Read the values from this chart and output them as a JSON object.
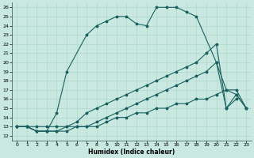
{
  "xlabel": "Humidex (Indice chaleur)",
  "xlim": [
    -0.5,
    23.5
  ],
  "ylim": [
    11.5,
    26.5
  ],
  "xticks": [
    0,
    1,
    2,
    3,
    4,
    5,
    6,
    7,
    8,
    9,
    10,
    11,
    12,
    13,
    14,
    15,
    16,
    17,
    18,
    19,
    20,
    21,
    22,
    23
  ],
  "yticks": [
    12,
    13,
    14,
    15,
    16,
    17,
    18,
    19,
    20,
    21,
    22,
    23,
    24,
    25,
    26
  ],
  "bg_color": "#c8e8e0",
  "line_color": "#1a6060",
  "grid_color": "#b0d8d0",
  "line1_x": [
    0,
    1,
    2,
    3,
    4,
    5,
    7,
    8,
    9,
    10,
    11,
    12,
    13,
    14,
    15,
    16,
    17,
    18,
    20,
    21,
    22
  ],
  "line1_y": [
    13,
    13,
    12.5,
    12.5,
    14.5,
    19,
    23,
    24,
    24.5,
    25,
    25,
    24.2,
    24,
    26,
    26,
    26,
    25.5,
    25,
    20,
    15,
    16
  ],
  "line2_x": [
    0,
    1,
    2,
    3,
    4,
    5,
    6,
    7,
    8,
    9,
    10,
    11,
    12,
    13,
    14,
    15,
    16,
    17,
    18,
    19,
    20,
    21,
    22,
    23
  ],
  "line2_y": [
    13,
    13,
    12.5,
    12.5,
    12.5,
    13,
    13.5,
    14.5,
    15,
    15.5,
    16,
    16.5,
    17,
    17.5,
    18,
    18.5,
    19,
    19.5,
    20,
    21,
    22,
    15,
    16.5,
    15
  ],
  "line3_x": [
    0,
    1,
    2,
    3,
    4,
    5,
    6,
    7,
    8,
    9,
    10,
    11,
    12,
    13,
    14,
    15,
    16,
    17,
    18,
    19,
    20,
    21,
    22,
    23
  ],
  "line3_y": [
    13,
    13,
    12.5,
    12.5,
    12.5,
    12.5,
    13,
    13,
    13.5,
    14,
    14.5,
    15,
    15.5,
    16,
    16.5,
    17,
    17.5,
    18,
    18.5,
    19,
    20,
    17,
    16.5,
    15
  ],
  "line4_x": [
    0,
    1,
    2,
    3,
    4,
    5,
    6,
    7,
    8,
    9,
    10,
    11,
    12,
    13,
    14,
    15,
    16,
    17,
    18,
    19,
    20,
    21,
    22,
    23
  ],
  "line4_y": [
    13,
    13,
    13,
    13,
    13,
    13,
    13,
    13,
    13,
    13.5,
    14,
    14,
    14.5,
    14.5,
    15,
    15,
    15.5,
    15.5,
    16,
    16,
    16.5,
    17,
    17,
    15
  ]
}
